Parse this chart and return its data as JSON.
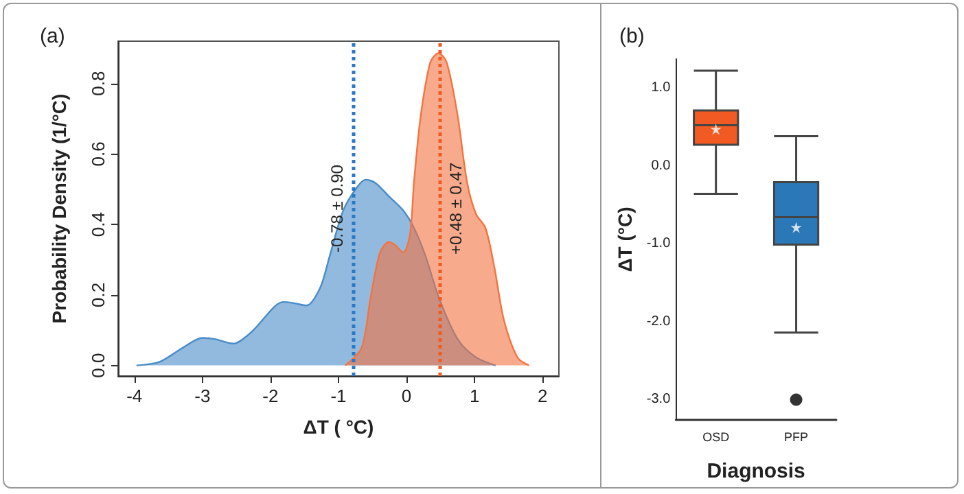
{
  "chart_data": [
    {
      "type": "area",
      "title": "(a)",
      "xlabel": "ΔT ( °C)",
      "ylabel": "Probability Density (1/°C)",
      "xlim": [
        -4.24,
        2.24
      ],
      "ylim": [
        -0.03,
        0.92
      ],
      "xticks": [
        -4,
        -3,
        -2,
        -1,
        0,
        1,
        2
      ],
      "yticks": [
        {
          "value": 0,
          "label": "0.0"
        },
        {
          "value": 0.2,
          "label": "0.2"
        },
        {
          "value": 0.4,
          "label": "0.4"
        },
        {
          "value": 0.6,
          "label": "0.6"
        },
        {
          "value": 0.8,
          "label": "0.8"
        }
      ],
      "marker": "none",
      "series": [
        {
          "color": "#4a8cc8",
          "x": [
            -3.97,
            -3.63,
            -3.29,
            -3.0,
            -2.82,
            -2.55,
            -2.28,
            -1.94,
            -1.81,
            -1.67,
            -1.47,
            -1.27,
            -1.13,
            -0.93,
            -0.73,
            -0.6,
            -0.46,
            -0.26,
            -0.05,
            0.11,
            0.28,
            0.48,
            0.75,
            1.02,
            1.31
          ],
          "values": [
            0,
            0.01,
            0.05,
            0.078,
            0.075,
            0.062,
            0.095,
            0.167,
            0.18,
            0.177,
            0.17,
            0.22,
            0.31,
            0.44,
            0.505,
            0.527,
            0.518,
            0.48,
            0.44,
            0.39,
            0.31,
            0.19,
            0.075,
            0.023,
            0
          ]
        },
        {
          "color": "#f4733f",
          "x": [
            -0.9,
            -0.66,
            -0.53,
            -0.39,
            -0.26,
            -0.16,
            -0.05,
            0.05,
            0.11,
            0.21,
            0.35,
            0.47,
            0.59,
            0.75,
            0.89,
            1.02,
            1.16,
            1.29,
            1.43,
            1.63,
            1.8
          ],
          "values": [
            0,
            0.05,
            0.19,
            0.32,
            0.35,
            0.34,
            0.32,
            0.37,
            0.52,
            0.71,
            0.86,
            0.886,
            0.86,
            0.71,
            0.52,
            0.43,
            0.39,
            0.28,
            0.13,
            0.023,
            0
          ]
        }
      ],
      "ref_lines": [
        {
          "axis": "x",
          "value": -0.78,
          "label": "-0.78 ± 0.90",
          "color": "#2a78c8",
          "line_style": "dotted"
        },
        {
          "axis": "x",
          "value": 0.48,
          "label": "+0.48 ± 0.47",
          "color": "#f15a22",
          "line_style": "dotted"
        }
      ]
    },
    {
      "type": "box",
      "title": "(b)",
      "xlabel": "Diagnosis",
      "ylabel": "ΔT (°C)",
      "categories": [
        "OSD",
        "PFP"
      ],
      "ylim": [
        -3.26,
        1.37
      ],
      "yticks": [
        {
          "value": 1,
          "label": "1.0"
        },
        {
          "value": 0,
          "label": "0.0"
        },
        {
          "value": -1,
          "label": "-1.0"
        },
        {
          "value": -2,
          "label": "-2.0"
        },
        {
          "value": -3,
          "label": "-3.0"
        }
      ],
      "colors": [
        "#f15a22",
        "#2a78b8"
      ],
      "boxes": [
        {
          "low": -0.36,
          "q1": 0.27,
          "median": 0.52,
          "q3": 0.71,
          "high": 1.22,
          "mean": 0.47
        },
        {
          "low": -2.14,
          "q1": -1.01,
          "median": -0.66,
          "q3": -0.21,
          "high": 0.38,
          "mean": -0.79,
          "outliers": [
            -3.0
          ]
        }
      ]
    }
  ]
}
